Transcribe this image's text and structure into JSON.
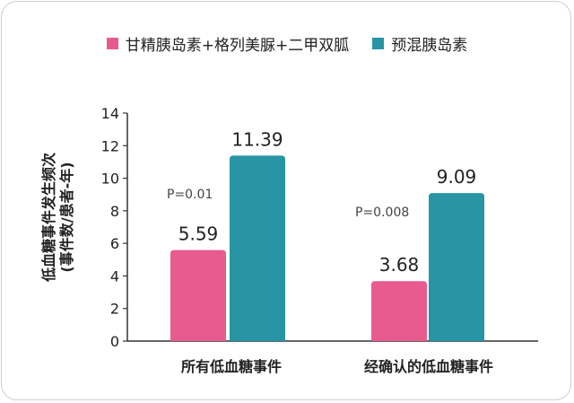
{
  "chart_data": {
    "type": "bar",
    "categories": [
      "所有低血糖事件",
      "经确认的低血糖事件"
    ],
    "series": [
      {
        "name": "甘精胰岛素+格列美脲+二甲双胍",
        "values": [
          5.59,
          3.68
        ],
        "color": "#e85b8f"
      },
      {
        "name": "预混胰岛素",
        "values": [
          11.39,
          9.09
        ],
        "color": "#2795a3"
      }
    ],
    "data_labels": [
      [
        "5.59",
        "11.39"
      ],
      [
        "3.68",
        "9.09"
      ]
    ],
    "annotations": [
      "P=0.01",
      "P=0.008"
    ],
    "ylabel_line1": "低血糖事件发生频次",
    "ylabel_line2": "(事件数/患者-年)",
    "xlabel": "",
    "ylim": [
      0,
      14
    ],
    "yticks": [
      0,
      2,
      4,
      6,
      8,
      10,
      12,
      14
    ],
    "legend": "top-center",
    "grid": false
  }
}
